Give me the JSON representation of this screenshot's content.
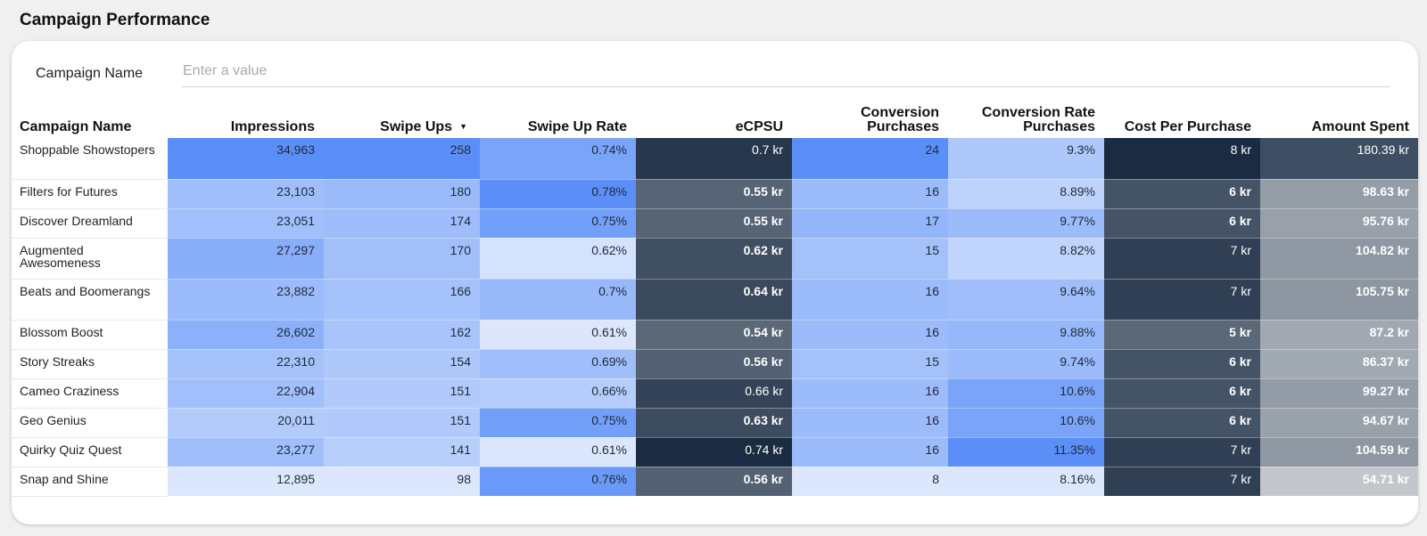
{
  "page": {
    "title": "Campaign Performance"
  },
  "filter": {
    "label": "Campaign Name",
    "placeholder": "Enter a value"
  },
  "table": {
    "columns": [
      "Campaign Name",
      "Impressions",
      "Swipe Ups",
      "Swipe Up Rate",
      "eCPSU",
      "Conversion Purchases",
      "Conversion Rate Purchases",
      "Cost Per Purchase",
      "Amount Spent"
    ],
    "sort_column": "Swipe Ups",
    "sort_direction": "descending",
    "rows": [
      {
        "name": "Shoppable Showstopers",
        "impressions": "34,963",
        "swipe_ups": "258",
        "swipe_up_rate": "0.74%",
        "ecpsu": "0.7 kr",
        "conv_purchases": "24",
        "conv_rate": "9.3%",
        "cost_per_purchase": "8 kr",
        "amount_spent": "180.39 kr"
      },
      {
        "name": "Filters for Futures",
        "impressions": "23,103",
        "swipe_ups": "180",
        "swipe_up_rate": "0.78%",
        "ecpsu": "0.55 kr",
        "conv_purchases": "16",
        "conv_rate": "8.89%",
        "cost_per_purchase": "6 kr",
        "amount_spent": "98.63 kr"
      },
      {
        "name": "Discover Dreamland",
        "impressions": "23,051",
        "swipe_ups": "174",
        "swipe_up_rate": "0.75%",
        "ecpsu": "0.55 kr",
        "conv_purchases": "17",
        "conv_rate": "9.77%",
        "cost_per_purchase": "6 kr",
        "amount_spent": "95.76 kr"
      },
      {
        "name": "Augmented Awesomeness",
        "impressions": "27,297",
        "swipe_ups": "170",
        "swipe_up_rate": "0.62%",
        "ecpsu": "0.62 kr",
        "conv_purchases": "15",
        "conv_rate": "8.82%",
        "cost_per_purchase": "7 kr",
        "amount_spent": "104.82 kr"
      },
      {
        "name": "Beats and Boomerangs",
        "impressions": "23,882",
        "swipe_ups": "166",
        "swipe_up_rate": "0.7%",
        "ecpsu": "0.64 kr",
        "conv_purchases": "16",
        "conv_rate": "9.64%",
        "cost_per_purchase": "7 kr",
        "amount_spent": "105.75 kr"
      },
      {
        "name": "Blossom Boost",
        "impressions": "26,602",
        "swipe_ups": "162",
        "swipe_up_rate": "0.61%",
        "ecpsu": "0.54 kr",
        "conv_purchases": "16",
        "conv_rate": "9.88%",
        "cost_per_purchase": "5 kr",
        "amount_spent": "87.2 kr"
      },
      {
        "name": "Story Streaks",
        "impressions": "22,310",
        "swipe_ups": "154",
        "swipe_up_rate": "0.69%",
        "ecpsu": "0.56 kr",
        "conv_purchases": "15",
        "conv_rate": "9.74%",
        "cost_per_purchase": "6 kr",
        "amount_spent": "86.37 kr"
      },
      {
        "name": "Cameo Craziness",
        "impressions": "22,904",
        "swipe_ups": "151",
        "swipe_up_rate": "0.66%",
        "ecpsu": "0.66 kr",
        "conv_purchases": "16",
        "conv_rate": "10.6%",
        "cost_per_purchase": "6 kr",
        "amount_spent": "99.27 kr"
      },
      {
        "name": "Geo Genius",
        "impressions": "20,011",
        "swipe_ups": "151",
        "swipe_up_rate": "0.75%",
        "ecpsu": "0.63 kr",
        "conv_purchases": "16",
        "conv_rate": "10.6%",
        "cost_per_purchase": "6 kr",
        "amount_spent": "94.67 kr"
      },
      {
        "name": "Quirky Quiz Quest",
        "impressions": "23,277",
        "swipe_ups": "141",
        "swipe_up_rate": "0.61%",
        "ecpsu": "0.74 kr",
        "conv_purchases": "16",
        "conv_rate": "11.35%",
        "cost_per_purchase": "7 kr",
        "amount_spent": "104.59 kr"
      },
      {
        "name": "Snap and Shine",
        "impressions": "12,895",
        "swipe_ups": "98",
        "swipe_up_rate": "0.76%",
        "ecpsu": "0.56 kr",
        "conv_purchases": "8",
        "conv_rate": "8.16%",
        "cost_per_purchase": "7 kr",
        "amount_spent": "54.71 kr"
      }
    ]
  },
  "heatmap_colors": {
    "blue_light": "#dce7fd",
    "blue_dark": "#5b8ff7",
    "navy_light": "#8e99a5",
    "navy_dark": "#1b2b41",
    "gray_light": "#c3c7cc",
    "gray_dark": "#3e4f63"
  },
  "sort_icon": "sort-descending-icon"
}
